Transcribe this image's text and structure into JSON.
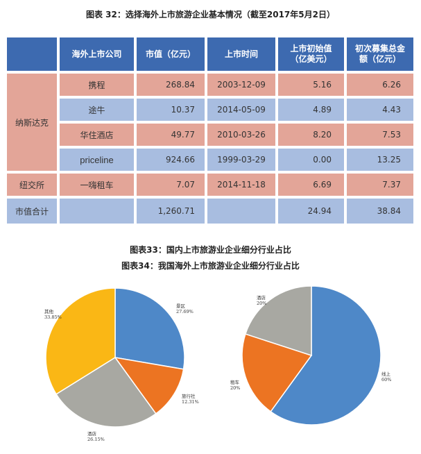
{
  "captions": {
    "c32": "图表 32：选择海外上市旅游企业基本情况（截至2017年5月2日）",
    "c33": "图表33：国内上市旅游业企业细分行业占比",
    "c34": "图表34：我国海外上市旅游业企业细分行业占比"
  },
  "table": {
    "headers": [
      "海外上市公司",
      "市值（亿元）",
      "上市时间",
      "上市初始值（亿美元）",
      "初次募集总金额（亿元）"
    ],
    "groups": [
      "纳斯达克",
      "纽交所",
      "市值合计"
    ],
    "rows": [
      {
        "company": "携程",
        "market_cap": "268.84",
        "ipo_date": "2003-12-09",
        "initial_value": "5.16",
        "raised": "6.26"
      },
      {
        "company": "途牛",
        "market_cap": "10.37",
        "ipo_date": "2014-05-09",
        "initial_value": "4.89",
        "raised": "4.43"
      },
      {
        "company": "华住酒店",
        "market_cap": "49.77",
        "ipo_date": "2010-03-26",
        "initial_value": "8.20",
        "raised": "7.53"
      },
      {
        "company": "priceline",
        "market_cap": "924.66",
        "ipo_date": "1999-03-29",
        "initial_value": "0.00",
        "raised": "13.25"
      },
      {
        "company": "一嗨租车",
        "market_cap": "7.07",
        "ipo_date": "2014-11-18",
        "initial_value": "6.69",
        "raised": "7.37"
      }
    ],
    "total": {
      "market_cap": "1,260.71",
      "initial_value": "24.94",
      "raised": "38.84"
    }
  },
  "chart_data": [
    {
      "type": "pie",
      "title": "图表33：国内上市旅游业企业细分行业占比",
      "slices": [
        {
          "label": "景区",
          "value": 27.69,
          "pct": "27.69%",
          "color": "#4e88c8"
        },
        {
          "label": "旅行社",
          "value": 12.31,
          "pct": "12.31%",
          "color": "#ec7422"
        },
        {
          "label": "酒店",
          "value": 26.15,
          "pct": "26.15%",
          "color": "#a8a8a2"
        },
        {
          "label": "其他",
          "value": 33.85,
          "pct": "33.85%",
          "color": "#fab715"
        }
      ]
    },
    {
      "type": "pie",
      "title": "图表34：我国海外上市旅游业企业细分行业占比",
      "slices": [
        {
          "label": "线上",
          "value": 60,
          "pct": "60%",
          "color": "#4e88c8"
        },
        {
          "label": "租车",
          "value": 20,
          "pct": "20%",
          "color": "#ec7422"
        },
        {
          "label": "酒店",
          "value": 20,
          "pct": "20%",
          "color": "#a8a8a2"
        }
      ]
    }
  ]
}
